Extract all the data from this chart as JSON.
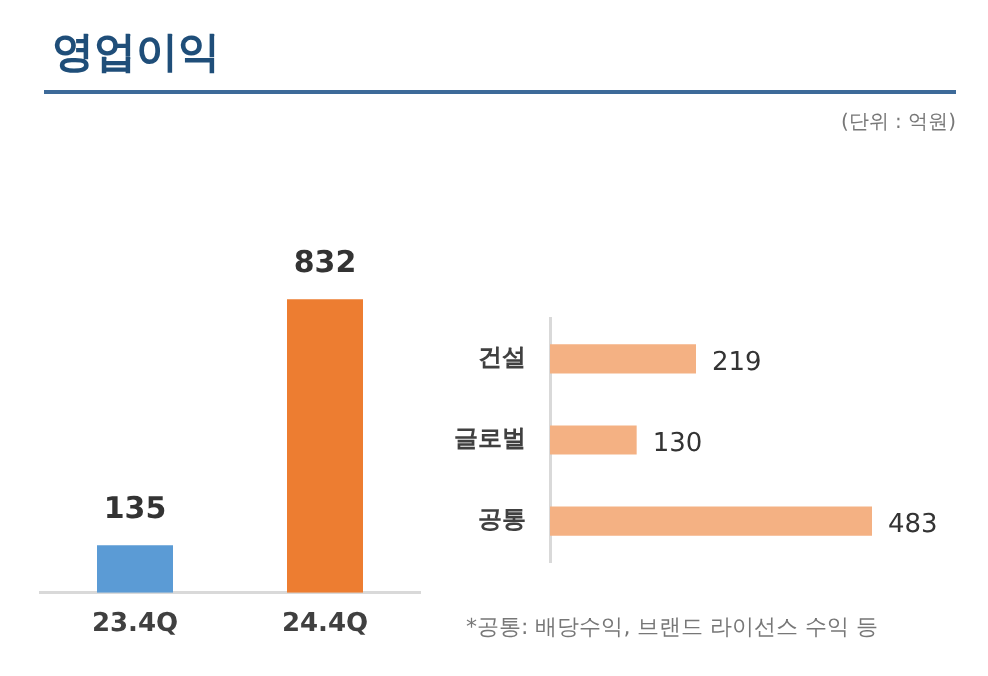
{
  "chart_data": [
    {
      "type": "bar",
      "title": "영업이익",
      "annotations": [
        "(단위 : 억원)"
      ],
      "categories": [
        "23.4Q",
        "24.4Q"
      ],
      "values": [
        135,
        832
      ],
      "colors": [
        "#5b9bd5",
        "#ed7d31"
      ],
      "data_labels": true,
      "grid": false,
      "legend": false
    },
    {
      "type": "bar",
      "orientation": "horizontal",
      "annotations": [
        "*공통: 배당수익, 브랜드 라이선스 수익 등"
      ],
      "categories": [
        "건설",
        "글로벌",
        "공통"
      ],
      "values": [
        219,
        130,
        483
      ],
      "color": "#f4b183",
      "data_labels": true,
      "grid": false,
      "legend": false
    }
  ]
}
